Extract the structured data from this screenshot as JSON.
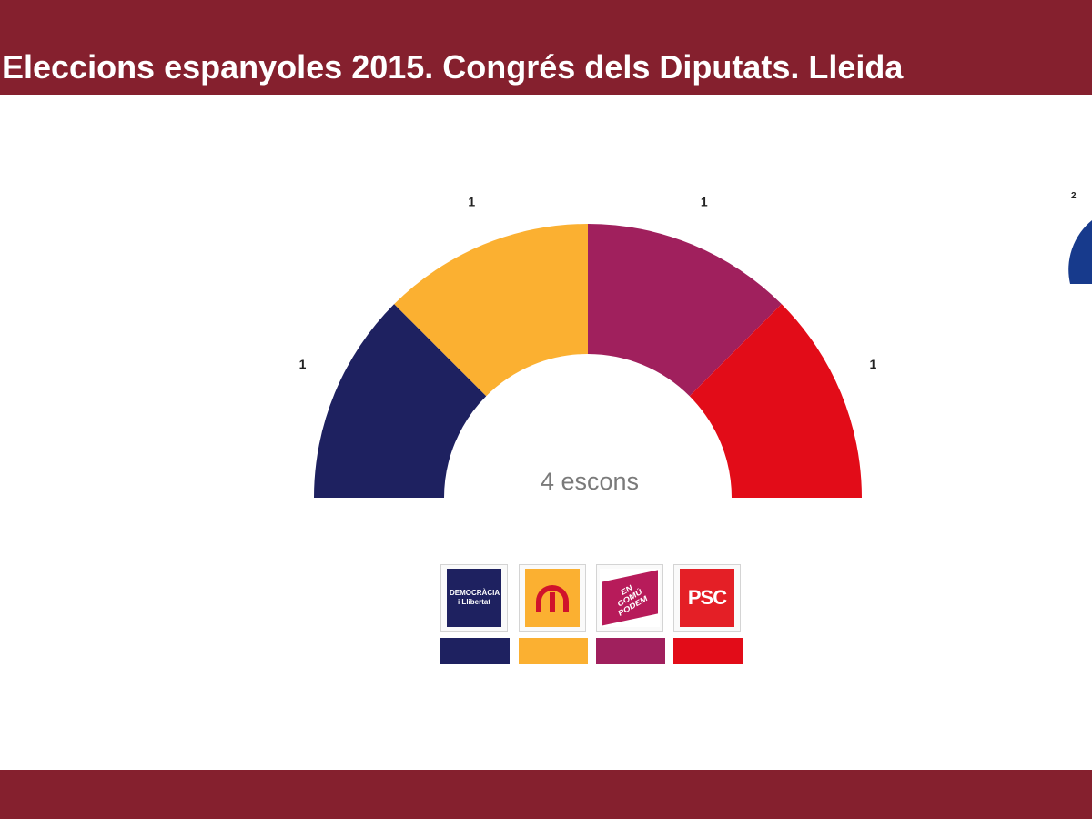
{
  "header": {
    "title": "Eleccions espanyoles 2015. Congrés dels Diputats. Lleida"
  },
  "chart_data": {
    "type": "pie",
    "subtype": "hemicycle",
    "total_seats": 4,
    "center_label": "4 escons",
    "series": [
      {
        "value": 1,
        "label": "1",
        "color": "#1e2160"
      },
      {
        "value": 1,
        "label": "1",
        "color": "#fbb031"
      },
      {
        "value": 1,
        "label": "1",
        "color": "#a0205d"
      },
      {
        "value": 1,
        "label": "1",
        "color": "#e20c18"
      }
    ]
  },
  "legend": {
    "items": [
      {
        "logo": "democracia-i-llibertat-logo",
        "logo_text": "DEMOCRÀCIA i Llibertat",
        "color": "#1e2160"
      },
      {
        "logo": "erc-logo",
        "logo_text": "",
        "color": "#fbb031"
      },
      {
        "logo": "en-comu-podem-logo",
        "logo_text": "EN COMÚ PODEM",
        "color": "#a0205d"
      },
      {
        "logo": "psc-logo",
        "logo_text": "PSC",
        "color": "#e20c18"
      }
    ]
  },
  "edge_fragment": {
    "label": "2",
    "color": "#173a8c"
  }
}
